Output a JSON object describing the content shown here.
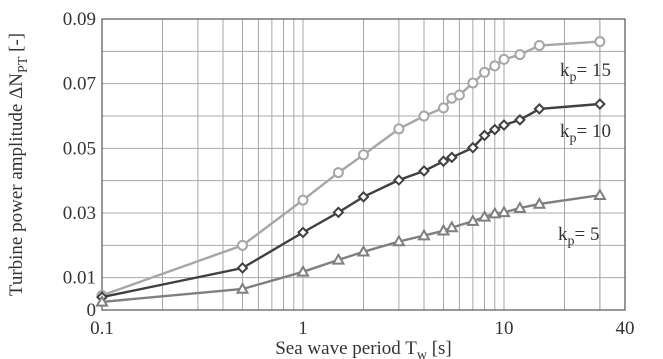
{
  "chart_data": {
    "type": "line",
    "xscale": "log",
    "xlim": [
      0.1,
      40
    ],
    "ylim": [
      0,
      0.09
    ],
    "grid": true,
    "xlabel": {
      "main": "Sea wave period T",
      "sub": "w",
      "unit": " [s]"
    },
    "ylabel": {
      "main": "Turbine power amplitude ΔN",
      "sub": "PT",
      "unit": " [-]"
    },
    "xticks": [
      {
        "value": 0.1,
        "label": "0.1"
      },
      {
        "value": 1,
        "label": "1"
      },
      {
        "value": 10,
        "label": "10"
      },
      {
        "value": 40,
        "label": "40"
      }
    ],
    "yticks": [
      {
        "value": 0,
        "label": "0"
      },
      {
        "value": 0.01,
        "label": "0.01"
      },
      {
        "value": 0.03,
        "label": "0.03"
      },
      {
        "value": 0.05,
        "label": "0.05"
      },
      {
        "value": 0.07,
        "label": "0.07"
      },
      {
        "value": 0.09,
        "label": "0.09"
      }
    ],
    "series": [
      {
        "label_main": "k",
        "label_sub": "p",
        "label_rest": "= 15",
        "marker": "circle",
        "color": "#a6a6a6",
        "x": [
          0.1,
          0.5,
          1,
          1.5,
          2,
          3,
          4,
          5,
          5.5,
          6,
          7,
          8,
          9,
          10,
          12,
          15,
          30
        ],
        "y": [
          0.0045,
          0.02,
          0.034,
          0.0425,
          0.048,
          0.056,
          0.06,
          0.0625,
          0.0655,
          0.0665,
          0.0702,
          0.0735,
          0.0755,
          0.0775,
          0.079,
          0.0818,
          0.083
        ]
      },
      {
        "label_main": "k",
        "label_sub": "p",
        "label_rest": "= 10",
        "marker": "diamond",
        "color": "#404040",
        "x": [
          0.1,
          0.5,
          1,
          1.5,
          2,
          3,
          4,
          5,
          5.5,
          7,
          8,
          9,
          10,
          12,
          15,
          30
        ],
        "y": [
          0.004,
          0.013,
          0.024,
          0.0302,
          0.035,
          0.0402,
          0.043,
          0.046,
          0.0472,
          0.0502,
          0.054,
          0.0558,
          0.0572,
          0.0588,
          0.0622,
          0.0637
        ]
      },
      {
        "label_main": "k",
        "label_sub": "p",
        "label_rest": "= 5",
        "marker": "triangle",
        "color": "#7f7f7f",
        "x": [
          0.1,
          0.5,
          1,
          1.5,
          2,
          3,
          4,
          5,
          5.5,
          7,
          8,
          9,
          10,
          12,
          15,
          30
        ],
        "y": [
          0.0025,
          0.0065,
          0.0118,
          0.0155,
          0.018,
          0.0212,
          0.023,
          0.0245,
          0.0255,
          0.0275,
          0.0288,
          0.0298,
          0.0302,
          0.0315,
          0.0328,
          0.0355
        ]
      }
    ]
  }
}
